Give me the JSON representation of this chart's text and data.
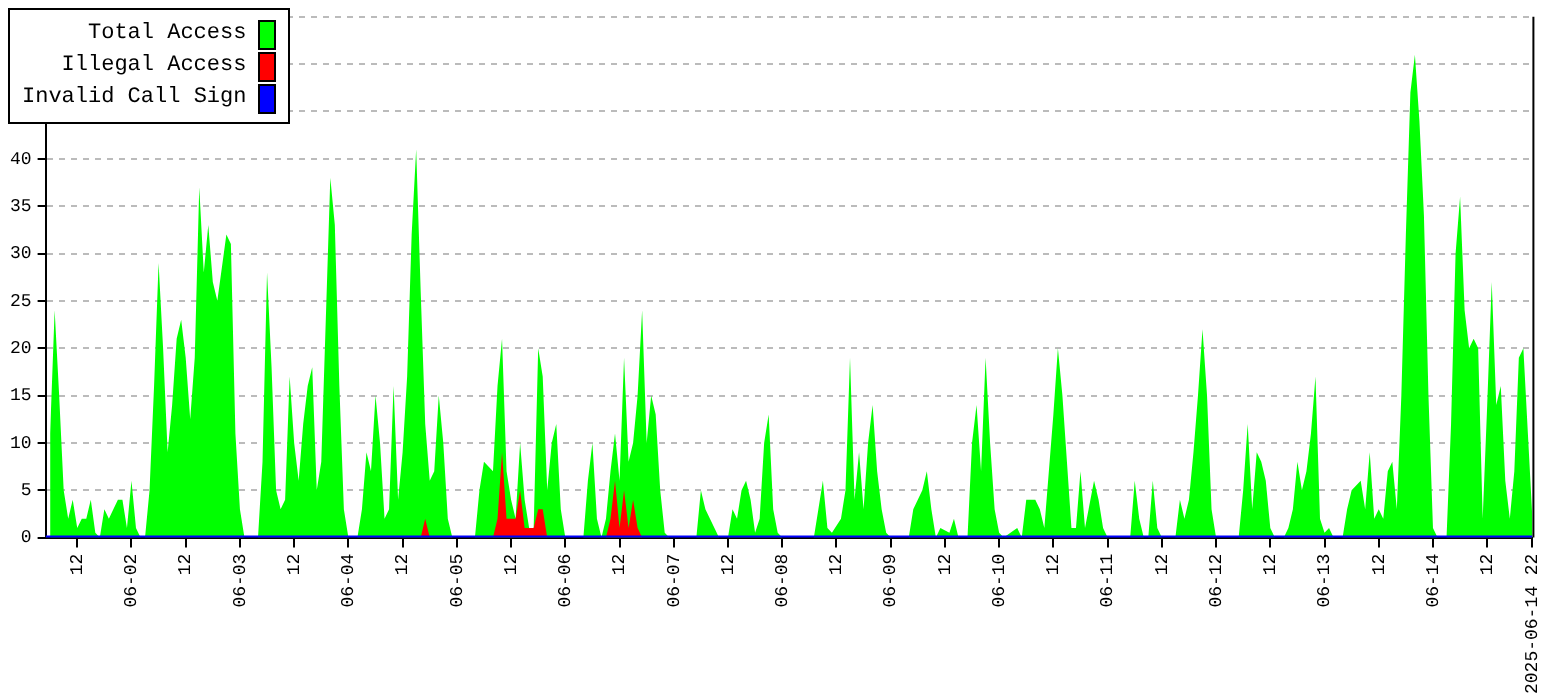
{
  "chart_data": {
    "type": "area",
    "legend": "top left",
    "grid": "y",
    "xlim": [
      "2025-06-01T05:00",
      "2025-06-14T22:00"
    ],
    "xticks": [
      {
        "value": "2025-06-01T12:00",
        "label": "12"
      },
      {
        "value": "2025-06-02T00:00",
        "label": "06-02"
      },
      {
        "value": "2025-06-02T12:00",
        "label": "12"
      },
      {
        "value": "2025-06-03T00:00",
        "label": "06-03"
      },
      {
        "value": "2025-06-03T12:00",
        "label": "12"
      },
      {
        "value": "2025-06-04T00:00",
        "label": "06-04"
      },
      {
        "value": "2025-06-04T12:00",
        "label": "12"
      },
      {
        "value": "2025-06-05T00:00",
        "label": "06-05"
      },
      {
        "value": "2025-06-05T12:00",
        "label": "12"
      },
      {
        "value": "2025-06-06T00:00",
        "label": "06-06"
      },
      {
        "value": "2025-06-06T12:00",
        "label": "12"
      },
      {
        "value": "2025-06-07T00:00",
        "label": "06-07"
      },
      {
        "value": "2025-06-07T12:00",
        "label": "12"
      },
      {
        "value": "2025-06-08T00:00",
        "label": "06-08"
      },
      {
        "value": "2025-06-08T12:00",
        "label": "12"
      },
      {
        "value": "2025-06-09T00:00",
        "label": "06-09"
      },
      {
        "value": "2025-06-09T12:00",
        "label": "12"
      },
      {
        "value": "2025-06-10T00:00",
        "label": "06-10"
      },
      {
        "value": "2025-06-10T12:00",
        "label": "12"
      },
      {
        "value": "2025-06-11T00:00",
        "label": "06-11"
      },
      {
        "value": "2025-06-11T12:00",
        "label": "12"
      },
      {
        "value": "2025-06-12T00:00",
        "label": "06-12"
      },
      {
        "value": "2025-06-12T12:00",
        "label": "12"
      },
      {
        "value": "2025-06-13T00:00",
        "label": "06-13"
      },
      {
        "value": "2025-06-13T12:00",
        "label": "12"
      },
      {
        "value": "2025-06-14T00:00",
        "label": "06-14"
      },
      {
        "value": "2025-06-14T12:00",
        "label": "12"
      },
      {
        "value": "2025-06-14T22:00",
        "label": "2025-06-14 22"
      }
    ],
    "ylim": [
      0,
      55
    ],
    "yticks": [
      0,
      5,
      10,
      15,
      20,
      25,
      30,
      35,
      40,
      {
        "value": 45,
        "label": null
      },
      {
        "value": 50,
        "label": null
      },
      {
        "value": 55,
        "label": null
      }
    ],
    "series": [
      {
        "name": "Total Access",
        "color": "#00ff00",
        "x": [
          "2025-06-01T06:00",
          "2025-06-01T07:00",
          "2025-06-01T08:00",
          "2025-06-01T09:00",
          "2025-06-01T10:00",
          "2025-06-01T11:00",
          "2025-06-01T12:00",
          "2025-06-01T13:00",
          "2025-06-01T14:00",
          "2025-06-01T15:00",
          "2025-06-01T16:00",
          "2025-06-01T17:00",
          "2025-06-01T18:00",
          "2025-06-01T19:00",
          "2025-06-01T21:00",
          "2025-06-01T22:00",
          "2025-06-01T23:00",
          "2025-06-02T00:00",
          "2025-06-02T01:00",
          "2025-06-02T02:00",
          "2025-06-02T03:00",
          "2025-06-02T04:00",
          "2025-06-02T05:00",
          "2025-06-02T06:00",
          "2025-06-02T07:00",
          "2025-06-02T08:00",
          "2025-06-02T09:00",
          "2025-06-02T10:00",
          "2025-06-02T11:00",
          "2025-06-02T12:00",
          "2025-06-02T13:00",
          "2025-06-02T14:00",
          "2025-06-02T15:00",
          "2025-06-02T16:00",
          "2025-06-02T17:00",
          "2025-06-02T18:00",
          "2025-06-02T19:00",
          "2025-06-02T21:00",
          "2025-06-02T22:00",
          "2025-06-02T23:00",
          "2025-06-03T00:00",
          "2025-06-03T01:00",
          "2025-06-03T04:00",
          "2025-06-03T05:00",
          "2025-06-03T06:00",
          "2025-06-03T07:00",
          "2025-06-03T08:00",
          "2025-06-03T09:00",
          "2025-06-03T10:00",
          "2025-06-03T11:00",
          "2025-06-03T12:00",
          "2025-06-03T13:00",
          "2025-06-03T14:00",
          "2025-06-03T15:00",
          "2025-06-03T16:00",
          "2025-06-03T17:00",
          "2025-06-03T18:00",
          "2025-06-03T19:00",
          "2025-06-03T20:00",
          "2025-06-03T21:00",
          "2025-06-03T22:00",
          "2025-06-03T23:00",
          "2025-06-04T00:00",
          "2025-06-04T02:00",
          "2025-06-04T03:00",
          "2025-06-04T04:00",
          "2025-06-04T05:00",
          "2025-06-04T06:00",
          "2025-06-04T07:00",
          "2025-06-04T08:00",
          "2025-06-04T09:00",
          "2025-06-04T10:00",
          "2025-06-04T11:00",
          "2025-06-04T12:00",
          "2025-06-04T13:00",
          "2025-06-04T14:00",
          "2025-06-04T15:00",
          "2025-06-04T16:00",
          "2025-06-04T17:00",
          "2025-06-04T18:00",
          "2025-06-04T19:00",
          "2025-06-04T20:00",
          "2025-06-04T21:00",
          "2025-06-04T22:00",
          "2025-06-04T23:00",
          "2025-06-05T04:00",
          "2025-06-05T05:00",
          "2025-06-05T06:00",
          "2025-06-05T08:00",
          "2025-06-05T09:00",
          "2025-06-05T10:00",
          "2025-06-05T11:00",
          "2025-06-05T12:00",
          "2025-06-05T13:00",
          "2025-06-05T14:00",
          "2025-06-05T15:00",
          "2025-06-05T16:00",
          "2025-06-05T17:00",
          "2025-06-05T18:00",
          "2025-06-05T19:00",
          "2025-06-05T20:00",
          "2025-06-05T21:00",
          "2025-06-05T22:00",
          "2025-06-05T23:00",
          "2025-06-06T00:00",
          "2025-06-06T04:00",
          "2025-06-06T05:00",
          "2025-06-06T06:00",
          "2025-06-06T07:00",
          "2025-06-06T08:00",
          "2025-06-06T09:00",
          "2025-06-06T10:00",
          "2025-06-06T11:00",
          "2025-06-06T12:00",
          "2025-06-06T13:00",
          "2025-06-06T14:00",
          "2025-06-06T15:00",
          "2025-06-06T16:00",
          "2025-06-06T17:00",
          "2025-06-06T18:00",
          "2025-06-06T19:00",
          "2025-06-06T20:00",
          "2025-06-06T21:00",
          "2025-06-06T22:00",
          "2025-06-06T23:00",
          "2025-06-07T05:00",
          "2025-06-07T06:00",
          "2025-06-07T07:00",
          "2025-06-07T09:00",
          "2025-06-07T10:00",
          "2025-06-07T12:00",
          "2025-06-07T13:00",
          "2025-06-07T14:00",
          "2025-06-07T15:00",
          "2025-06-07T16:00",
          "2025-06-07T17:00",
          "2025-06-07T18:00",
          "2025-06-07T19:00",
          "2025-06-07T20:00",
          "2025-06-07T21:00",
          "2025-06-07T22:00",
          "2025-06-07T23:00",
          "2025-06-08T00:00",
          "2025-06-08T07:00",
          "2025-06-08T08:00",
          "2025-06-08T09:00",
          "2025-06-08T10:00",
          "2025-06-08T11:00",
          "2025-06-08T13:00",
          "2025-06-08T14:00",
          "2025-06-08T15:00",
          "2025-06-08T16:00",
          "2025-06-08T17:00",
          "2025-06-08T18:00",
          "2025-06-08T19:00",
          "2025-06-08T20:00",
          "2025-06-08T21:00",
          "2025-06-08T22:00",
          "2025-06-08T23:00",
          "2025-06-09T00:00",
          "2025-06-09T04:00",
          "2025-06-09T05:00",
          "2025-06-09T07:00",
          "2025-06-09T08:00",
          "2025-06-09T09:00",
          "2025-06-09T10:00",
          "2025-06-09T11:00",
          "2025-06-09T13:00",
          "2025-06-09T14:00",
          "2025-06-09T15:00",
          "2025-06-09T17:00",
          "2025-06-09T18:00",
          "2025-06-09T19:00",
          "2025-06-09T20:00",
          "2025-06-09T21:00",
          "2025-06-09T22:00",
          "2025-06-09T23:00",
          "2025-06-10T00:00",
          "2025-06-10T01:00",
          "2025-06-10T04:00",
          "2025-06-10T05:00",
          "2025-06-10T06:00",
          "2025-06-10T08:00",
          "2025-06-10T09:00",
          "2025-06-10T10:00",
          "2025-06-10T11:00",
          "2025-06-10T12:00",
          "2025-06-10T13:00",
          "2025-06-10T14:00",
          "2025-06-10T15:00",
          "2025-06-10T16:00",
          "2025-06-10T17:00",
          "2025-06-10T18:00",
          "2025-06-10T19:00",
          "2025-06-10T21:00",
          "2025-06-10T22:00",
          "2025-06-10T23:00",
          "2025-06-11T00:00",
          "2025-06-11T05:00",
          "2025-06-11T06:00",
          "2025-06-11T07:00",
          "2025-06-11T08:00",
          "2025-06-11T09:00",
          "2025-06-11T10:00",
          "2025-06-11T11:00",
          "2025-06-11T12:00",
          "2025-06-11T15:00",
          "2025-06-11T16:00",
          "2025-06-11T17:00",
          "2025-06-11T18:00",
          "2025-06-11T19:00",
          "2025-06-11T20:00",
          "2025-06-11T21:00",
          "2025-06-11T22:00",
          "2025-06-11T23:00",
          "2025-06-12T00:00",
          "2025-06-12T05:00",
          "2025-06-12T06:00",
          "2025-06-12T07:00",
          "2025-06-12T08:00",
          "2025-06-12T09:00",
          "2025-06-12T10:00",
          "2025-06-12T11:00",
          "2025-06-12T12:00",
          "2025-06-12T13:00",
          "2025-06-12T15:00",
          "2025-06-12T16:00",
          "2025-06-12T17:00",
          "2025-06-12T18:00",
          "2025-06-12T19:00",
          "2025-06-12T20:00",
          "2025-06-12T21:00",
          "2025-06-12T22:00",
          "2025-06-12T23:00",
          "2025-06-13T00:00",
          "2025-06-13T01:00",
          "2025-06-13T02:00",
          "2025-06-13T04:00",
          "2025-06-13T05:00",
          "2025-06-13T06:00",
          "2025-06-13T08:00",
          "2025-06-13T09:00",
          "2025-06-13T10:00",
          "2025-06-13T11:00",
          "2025-06-13T12:00",
          "2025-06-13T13:00",
          "2025-06-13T14:00",
          "2025-06-13T15:00",
          "2025-06-13T16:00",
          "2025-06-13T17:00",
          "2025-06-13T18:00",
          "2025-06-13T19:00",
          "2025-06-13T20:00",
          "2025-06-13T21:00",
          "2025-06-13T22:00",
          "2025-06-13T23:00",
          "2025-06-14T00:00",
          "2025-06-14T01:00",
          "2025-06-14T03:00",
          "2025-06-14T04:00",
          "2025-06-14T05:00",
          "2025-06-14T06:00",
          "2025-06-14T07:00",
          "2025-06-14T08:00",
          "2025-06-14T09:00",
          "2025-06-14T10:00",
          "2025-06-14T11:00",
          "2025-06-14T12:00",
          "2025-06-14T13:00",
          "2025-06-14T14:00",
          "2025-06-14T15:00",
          "2025-06-14T16:00",
          "2025-06-14T17:00",
          "2025-06-14T18:00",
          "2025-06-14T19:00",
          "2025-06-14T20:00",
          "2025-06-14T21:00",
          "2025-06-14T22:00"
        ],
        "values": [
          11,
          24,
          15,
          5,
          2,
          4,
          1,
          2,
          2,
          4,
          0.5,
          0,
          3,
          2,
          4,
          4,
          1,
          6,
          1,
          0,
          0,
          5,
          16,
          29,
          20,
          9,
          14,
          21,
          23,
          19,
          12.5,
          19,
          37,
          28,
          33,
          27,
          25,
          32,
          31,
          11,
          3,
          0,
          0,
          8,
          28,
          18,
          5,
          3,
          4,
          17,
          10,
          6,
          12,
          16,
          18,
          5,
          8,
          23,
          38,
          33,
          16,
          3,
          0,
          0,
          3,
          9,
          7,
          15,
          10,
          2,
          3,
          16,
          4,
          9,
          17,
          32,
          41,
          26,
          12,
          6,
          7,
          15,
          10,
          2,
          0,
          0,
          5,
          8,
          7,
          16,
          21,
          7,
          4,
          2,
          10,
          4,
          1,
          1,
          20,
          17,
          5,
          10,
          12,
          3,
          0,
          0,
          6,
          10,
          2,
          0,
          2,
          7,
          11,
          6,
          19,
          8,
          10,
          15,
          24,
          10,
          15,
          13,
          5,
          0.5,
          0,
          0,
          5,
          3,
          1,
          0,
          0,
          3,
          2,
          5,
          6,
          4,
          0.5,
          2,
          10,
          13,
          3,
          0.5,
          0,
          0,
          3,
          6,
          1,
          0.5,
          2,
          5,
          19,
          4,
          9,
          3,
          10,
          14,
          7,
          3,
          0.5,
          0,
          0,
          3,
          5,
          7,
          3,
          0,
          1,
          0.5,
          2,
          0,
          0,
          10,
          14,
          7,
          19,
          10,
          3,
          0.5,
          0,
          1,
          0,
          4,
          4,
          3,
          1,
          7,
          13,
          20,
          15,
          8,
          1,
          1,
          7,
          1,
          6,
          4,
          1,
          0,
          0,
          6,
          2,
          0,
          0,
          6,
          1,
          0,
          0,
          4,
          2,
          4,
          9,
          15,
          22,
          15,
          3,
          0,
          0,
          5,
          12,
          3,
          9,
          8,
          6,
          1,
          0,
          0,
          1,
          3,
          8,
          5,
          7,
          11,
          17,
          2,
          0.5,
          1,
          0,
          0,
          3,
          5,
          6,
          3,
          9,
          2,
          3,
          2,
          7,
          8,
          3,
          15,
          32,
          47,
          51,
          44,
          34,
          15,
          1,
          0,
          0,
          12,
          30,
          36,
          24,
          20,
          21,
          20,
          2,
          14,
          27,
          14,
          16,
          6,
          2,
          7,
          19,
          20,
          11,
          2
        ]
      },
      {
        "name": "Illegal Access",
        "color": "#ff0000",
        "x": [
          "2025-06-04T16:00",
          "2025-06-04T17:00",
          "2025-06-04T18:00",
          "2025-06-05T08:00",
          "2025-06-05T09:00",
          "2025-06-05T10:00",
          "2025-06-05T11:00",
          "2025-06-05T12:00",
          "2025-06-05T13:00",
          "2025-06-05T14:00",
          "2025-06-05T15:00",
          "2025-06-05T16:00",
          "2025-06-05T17:00",
          "2025-06-05T18:00",
          "2025-06-05T19:00",
          "2025-06-05T20:00",
          "2025-06-06T09:00",
          "2025-06-06T10:00",
          "2025-06-06T11:00",
          "2025-06-06T12:00",
          "2025-06-06T13:00",
          "2025-06-06T14:00",
          "2025-06-06T15:00",
          "2025-06-06T16:00",
          "2025-06-06T17:00"
        ],
        "values": [
          0,
          2,
          0,
          0,
          2,
          9,
          2,
          2,
          2,
          5,
          1,
          1,
          1,
          3,
          3,
          0,
          0,
          2,
          6,
          1,
          5,
          1,
          4,
          1,
          0
        ]
      },
      {
        "name": "Invalid Call Sign",
        "color": "#0000ff",
        "type": "line",
        "x": [
          "2025-06-01T05:00",
          "2025-06-14T22:00"
        ],
        "values": [
          0,
          0
        ]
      }
    ]
  }
}
